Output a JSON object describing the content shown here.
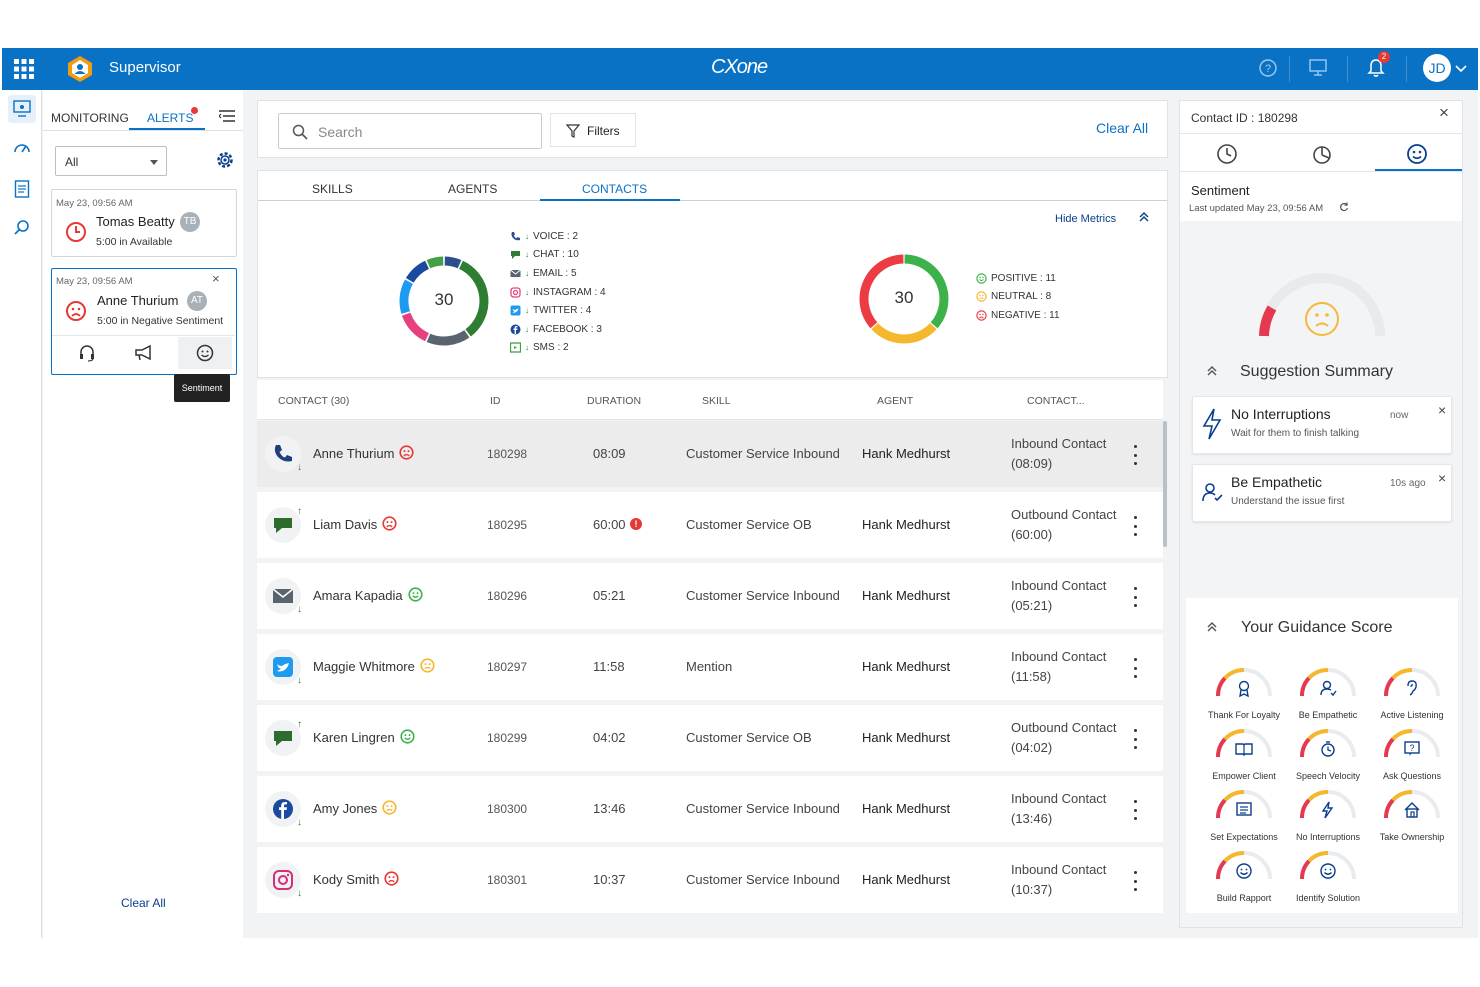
{
  "app": {
    "title": "Supervisor",
    "brand": "CXone"
  },
  "topbar": {
    "notification_count": "2",
    "user_initials": "JD"
  },
  "left_panel": {
    "tabs": [
      {
        "label": "MONITORING"
      },
      {
        "label": "ALERTS"
      }
    ],
    "filter_value": "All",
    "alerts": [
      {
        "time": "May 23, 09:56 AM",
        "name": "Tomas Beatty",
        "initials": "TB",
        "status": "5:00 in Available"
      },
      {
        "time": "May 23, 09:56 AM",
        "name": "Anne Thurium",
        "initials": "AT",
        "status": "5:00 in Negative Sentiment"
      }
    ],
    "tooltip": "Sentiment",
    "clear_all": "Clear All"
  },
  "toolbar": {
    "search_placeholder": "Search",
    "filters_label": "Filters",
    "clear_all": "Clear All"
  },
  "tabs": [
    {
      "label": "SKILLS"
    },
    {
      "label": "AGENTS"
    },
    {
      "label": "CONTACTS"
    }
  ],
  "metrics": {
    "hide_label": "Hide Metrics",
    "channels_total": "30",
    "channels": [
      {
        "label": "VOICE : 2",
        "color": "#2a4f8c"
      },
      {
        "label": "CHAT : 10",
        "color": "#2e7d32"
      },
      {
        "label": "EMAIL : 5",
        "color": "#5a6470"
      },
      {
        "label": "INSTAGRAM : 4",
        "color": "#e6407f"
      },
      {
        "label": "TWITTER : 4",
        "color": "#1d9bf0"
      },
      {
        "label": "FACEBOOK : 3",
        "color": "#1a4aa0"
      },
      {
        "label": "SMS : 2",
        "color": "#43a047"
      }
    ],
    "sentiment_total": "30",
    "sentiments": [
      {
        "label": "POSITIVE : 11",
        "color": "#3db24b"
      },
      {
        "label": "NEUTRAL : 8",
        "color": "#f5b72b"
      },
      {
        "label": "NEGATIVE : 11",
        "color": "#ec3b43"
      }
    ]
  },
  "table": {
    "headers": [
      "CONTACT (30)",
      "ID",
      "DURATION",
      "SKILL",
      "AGENT",
      "CONTACT..."
    ],
    "rows": [
      {
        "channel": "voice",
        "name": "Anne Thurium",
        "sentiment": "negative",
        "id": "180298",
        "duration": "08:09",
        "alert": false,
        "skill": "Customer Service Inbound",
        "agent": "Hank Medhurst",
        "contact_line1": "Inbound Contact",
        "contact_line2": "(08:09)"
      },
      {
        "channel": "chat",
        "name": "Liam Davis",
        "sentiment": "negative",
        "id": "180295",
        "duration": "60:00",
        "alert": true,
        "skill": "Customer Service OB",
        "agent": "Hank Medhurst",
        "contact_line1": "Outbound Contact",
        "contact_line2": "(60:00)"
      },
      {
        "channel": "email",
        "name": "Amara Kapadia",
        "sentiment": "positive",
        "id": "180296",
        "duration": "05:21",
        "alert": false,
        "skill": "Customer Service Inbound",
        "agent": "Hank Medhurst",
        "contact_line1": "Inbound Contact",
        "contact_line2": "(05:21)"
      },
      {
        "channel": "twitter",
        "name": "Maggie Whitmore",
        "sentiment": "neutral",
        "id": "180297",
        "duration": "11:58",
        "alert": false,
        "skill": "Mention",
        "agent": "Hank Medhurst",
        "contact_line1": "Inbound Contact",
        "contact_line2": "(11:58)"
      },
      {
        "channel": "chat",
        "name": "Karen Lingren",
        "sentiment": "positive",
        "id": "180299",
        "duration": "04:02",
        "alert": false,
        "skill": "Customer Service OB",
        "agent": "Hank Medhurst",
        "contact_line1": "Outbound Contact",
        "contact_line2": "(04:02)"
      },
      {
        "channel": "facebook",
        "name": "Amy Jones",
        "sentiment": "neutral",
        "id": "180300",
        "duration": "13:46",
        "alert": false,
        "skill": "Customer Service Inbound",
        "agent": "Hank Medhurst",
        "contact_line1": "Inbound Contact",
        "contact_line2": "(13:46)"
      },
      {
        "channel": "instagram",
        "name": "Kody Smith",
        "sentiment": "negative",
        "id": "180301",
        "duration": "10:37",
        "alert": false,
        "skill": "Customer Service Inbound",
        "agent": "Hank Medhurst",
        "contact_line1": "Inbound Contact",
        "contact_line2": "(10:37)"
      }
    ]
  },
  "right_panel": {
    "contact_id": "Contact ID : 180298",
    "sentiment_title": "Sentiment",
    "last_updated": "Last updated May 23, 09:56 AM",
    "suggestion_title": "Suggestion Summary",
    "suggestions": [
      {
        "title": "No Interruptions",
        "subtitle": "Wait for them to finish talking",
        "time": "now"
      },
      {
        "title": "Be Empathetic",
        "subtitle": "Understand the issue first",
        "time": "10s ago"
      }
    ],
    "guidance_title": "Your Guidance Score",
    "guidance": [
      {
        "label": "Thank For Loyalty",
        "icon": "award-icon"
      },
      {
        "label": "Be Empathetic",
        "icon": "user-icon"
      },
      {
        "label": "Active Listening",
        "icon": "ear-icon"
      },
      {
        "label": "Empower Client",
        "icon": "book-icon"
      },
      {
        "label": "Speech Velocity",
        "icon": "timer-icon"
      },
      {
        "label": "Ask Questions",
        "icon": "question-icon"
      },
      {
        "label": "Set Expectations",
        "icon": "list-icon"
      },
      {
        "label": "No Interruptions",
        "icon": "bolt-icon"
      },
      {
        "label": "Take Ownership",
        "icon": "home-icon"
      },
      {
        "label": "Build Rapport",
        "icon": "smile-icon"
      },
      {
        "label": "Identify Solution",
        "icon": "smile-icon"
      }
    ]
  }
}
